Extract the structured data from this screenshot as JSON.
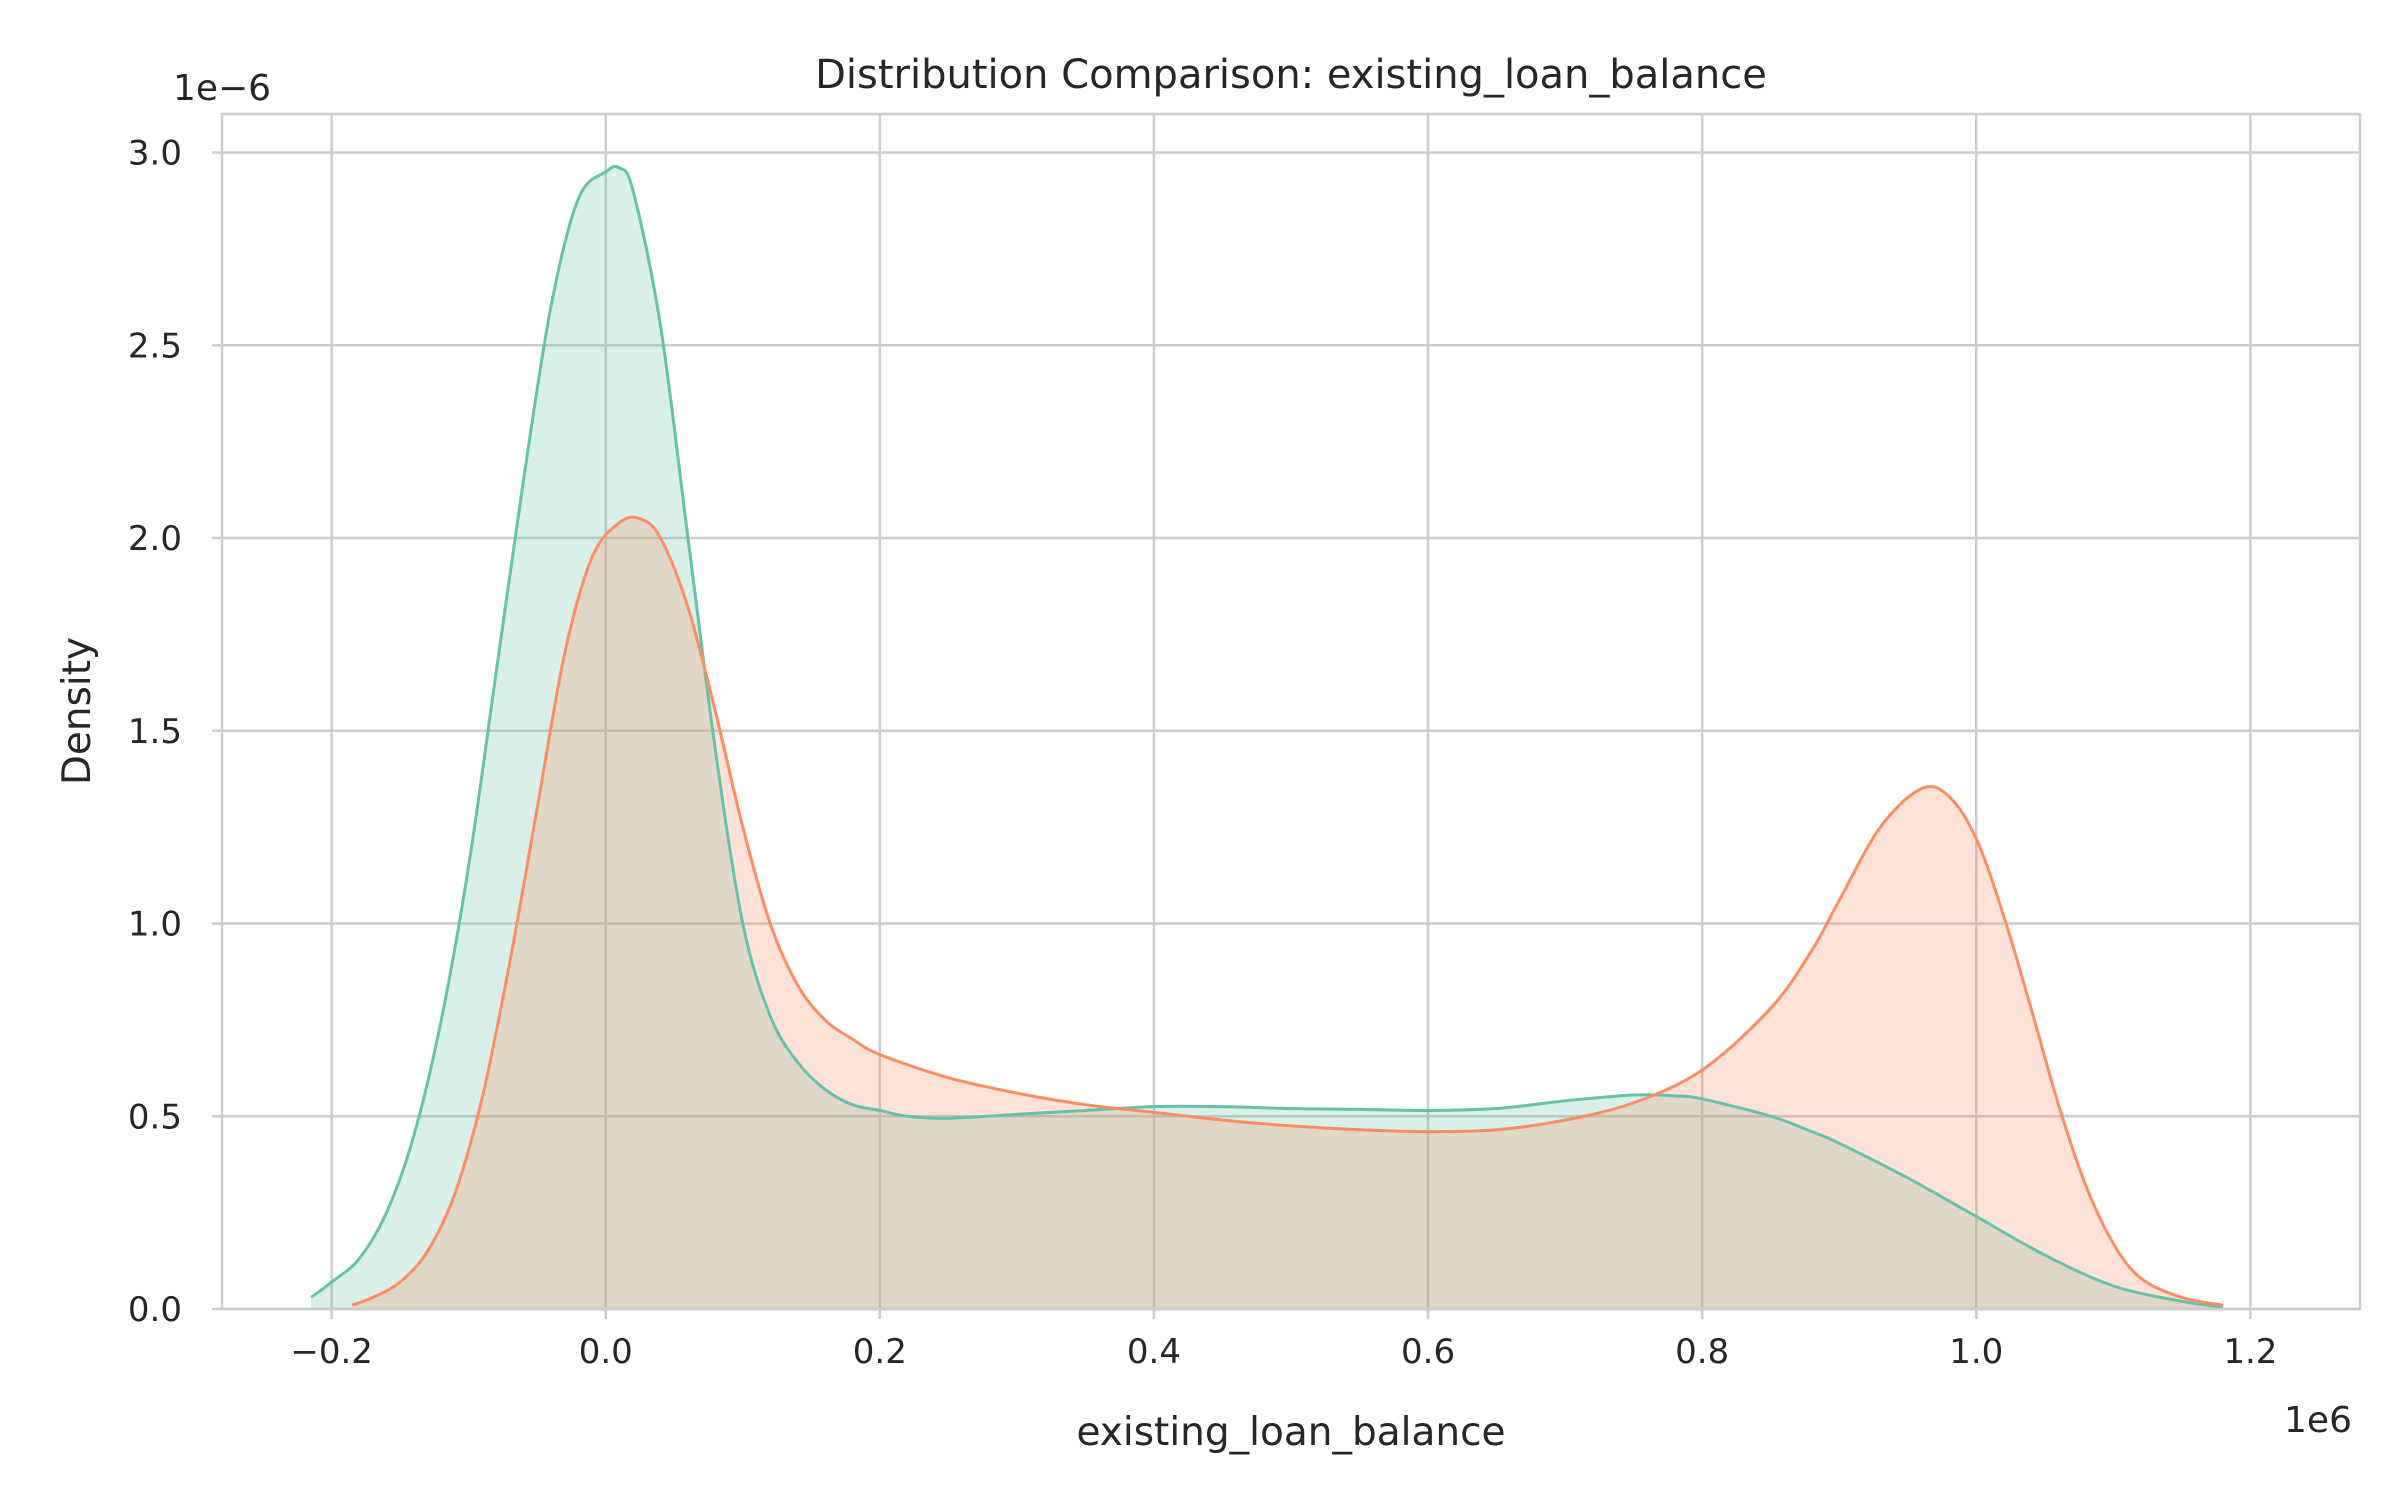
{
  "chart_data": {
    "type": "area",
    "title": "Distribution Comparison: existing_loan_balance",
    "xlabel": "existing_loan_balance",
    "ylabel": "Density",
    "x_offset_label": "1e6",
    "y_offset_label": "1e−6",
    "xlim": [
      -0.28,
      1.28
    ],
    "ylim": [
      0,
      3.1
    ],
    "x_ticks": [
      -0.2,
      0.0,
      0.2,
      0.4,
      0.6,
      0.8,
      1.0,
      1.2
    ],
    "x_tick_labels": [
      "−0.2",
      "0.0",
      "0.2",
      "0.4",
      "0.6",
      "0.8",
      "1.0",
      "1.2"
    ],
    "y_ticks": [
      0.0,
      0.5,
      1.0,
      1.5,
      2.0,
      2.5,
      3.0
    ],
    "y_tick_labels": [
      "0.0",
      "0.5",
      "1.0",
      "1.5",
      "2.0",
      "2.5",
      "3.0"
    ],
    "grid": true,
    "legend": "none",
    "series": [
      {
        "color": "#66c2a5",
        "fill": "#66c2a5",
        "x": [
          -0.215,
          -0.2,
          -0.18,
          -0.16,
          -0.14,
          -0.12,
          -0.1,
          -0.08,
          -0.06,
          -0.04,
          -0.02,
          0.0,
          0.01,
          0.02,
          0.04,
          0.06,
          0.08,
          0.1,
          0.12,
          0.14,
          0.16,
          0.18,
          0.2,
          0.22,
          0.25,
          0.3,
          0.35,
          0.4,
          0.45,
          0.5,
          0.55,
          0.6,
          0.65,
          0.7,
          0.75,
          0.78,
          0.8,
          0.85,
          0.88,
          0.9,
          0.95,
          1.0,
          1.05,
          1.1,
          1.15,
          1.18
        ],
        "y": [
          0.03,
          0.07,
          0.13,
          0.25,
          0.45,
          0.75,
          1.15,
          1.65,
          2.15,
          2.6,
          2.88,
          2.95,
          2.96,
          2.9,
          2.55,
          2.0,
          1.45,
          1.0,
          0.76,
          0.64,
          0.57,
          0.53,
          0.515,
          0.5,
          0.495,
          0.505,
          0.515,
          0.525,
          0.525,
          0.52,
          0.518,
          0.515,
          0.52,
          0.54,
          0.555,
          0.553,
          0.545,
          0.5,
          0.46,
          0.43,
          0.34,
          0.24,
          0.14,
          0.06,
          0.02,
          0.005
        ]
      },
      {
        "color": "#fc8d62",
        "fill": "#fc8d62",
        "x": [
          -0.185,
          -0.17,
          -0.15,
          -0.13,
          -0.11,
          -0.09,
          -0.07,
          -0.05,
          -0.03,
          -0.01,
          0.01,
          0.025,
          0.04,
          0.06,
          0.08,
          0.1,
          0.12,
          0.14,
          0.16,
          0.18,
          0.2,
          0.25,
          0.3,
          0.35,
          0.4,
          0.45,
          0.5,
          0.55,
          0.6,
          0.65,
          0.7,
          0.75,
          0.8,
          0.85,
          0.88,
          0.9,
          0.93,
          0.96,
          0.98,
          1.0,
          1.02,
          1.04,
          1.06,
          1.08,
          1.1,
          1.12,
          1.15,
          1.18
        ],
        "y": [
          0.01,
          0.03,
          0.07,
          0.15,
          0.3,
          0.55,
          0.9,
          1.3,
          1.7,
          1.95,
          2.04,
          2.05,
          2.0,
          1.82,
          1.55,
          1.25,
          1.0,
          0.84,
          0.75,
          0.7,
          0.66,
          0.6,
          0.56,
          0.53,
          0.51,
          0.49,
          0.475,
          0.465,
          0.46,
          0.465,
          0.49,
          0.535,
          0.62,
          0.78,
          0.93,
          1.06,
          1.25,
          1.35,
          1.33,
          1.22,
          1.02,
          0.78,
          0.53,
          0.32,
          0.17,
          0.08,
          0.03,
          0.01
        ]
      }
    ]
  }
}
